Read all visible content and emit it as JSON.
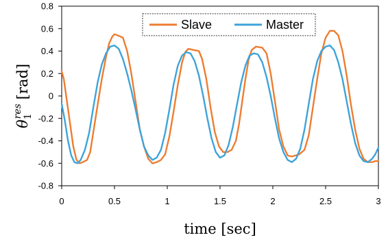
{
  "chart_data": {
    "type": "line",
    "xlabel": "time [sec]",
    "ylabel": {
      "base": "θ",
      "sub": "1",
      "sup": "res",
      "unit": "[rad]"
    },
    "xlim": [
      0,
      3
    ],
    "ylim": [
      -0.8,
      0.8
    ],
    "xticks": [
      0,
      0.5,
      1,
      1.5,
      2,
      2.5,
      3
    ],
    "xtick_labels": [
      "0",
      "0.5",
      "1",
      "1.5",
      "2",
      "2.5",
      "3"
    ],
    "yticks": [
      0.8,
      0.6,
      0.4,
      0.2,
      0,
      -0.2,
      -0.4,
      -0.6,
      -0.8
    ],
    "ytick_labels": [
      "0.8",
      "0.6",
      "0.4",
      "0.2",
      "0",
      "-0.2",
      "-0.4",
      "-0.6",
      "-0.8"
    ],
    "grid": false,
    "legend_position": "top-center",
    "series": [
      {
        "name": "Slave",
        "color": "#ED7D31",
        "points": [
          [
            0,
            0.22
          ],
          [
            0.02,
            0.15
          ],
          [
            0.05,
            -0.05
          ],
          [
            0.08,
            -0.25
          ],
          [
            0.11,
            -0.45
          ],
          [
            0.14,
            -0.57
          ],
          [
            0.17,
            -0.6
          ],
          [
            0.2,
            -0.59
          ],
          [
            0.24,
            -0.57
          ],
          [
            0.27,
            -0.5
          ],
          [
            0.3,
            -0.32
          ],
          [
            0.34,
            -0.08
          ],
          [
            0.38,
            0.15
          ],
          [
            0.42,
            0.35
          ],
          [
            0.45,
            0.47
          ],
          [
            0.48,
            0.53
          ],
          [
            0.5,
            0.55
          ],
          [
            0.53,
            0.54
          ],
          [
            0.58,
            0.52
          ],
          [
            0.62,
            0.4
          ],
          [
            0.66,
            0.2
          ],
          [
            0.7,
            -0.05
          ],
          [
            0.74,
            -0.3
          ],
          [
            0.78,
            -0.45
          ],
          [
            0.82,
            -0.56
          ],
          [
            0.86,
            -0.6
          ],
          [
            0.9,
            -0.59
          ],
          [
            0.94,
            -0.57
          ],
          [
            0.98,
            -0.52
          ],
          [
            1.02,
            -0.36
          ],
          [
            1.06,
            -0.14
          ],
          [
            1.1,
            0.1
          ],
          [
            1.14,
            0.3
          ],
          [
            1.17,
            0.39
          ],
          [
            1.2,
            0.42
          ],
          [
            1.25,
            0.41
          ],
          [
            1.3,
            0.4
          ],
          [
            1.33,
            0.33
          ],
          [
            1.37,
            0.15
          ],
          [
            1.41,
            -0.1
          ],
          [
            1.45,
            -0.32
          ],
          [
            1.49,
            -0.45
          ],
          [
            1.53,
            -0.5
          ],
          [
            1.57,
            -0.5
          ],
          [
            1.61,
            -0.48
          ],
          [
            1.65,
            -0.4
          ],
          [
            1.68,
            -0.25
          ],
          [
            1.71,
            -0.05
          ],
          [
            1.74,
            0.15
          ],
          [
            1.77,
            0.32
          ],
          [
            1.8,
            0.41
          ],
          [
            1.84,
            0.44
          ],
          [
            1.9,
            0.43
          ],
          [
            1.94,
            0.38
          ],
          [
            1.98,
            0.2
          ],
          [
            2.02,
            -0.05
          ],
          [
            2.06,
            -0.3
          ],
          [
            2.1,
            -0.45
          ],
          [
            2.14,
            -0.53
          ],
          [
            2.18,
            -0.54
          ],
          [
            2.25,
            -0.52
          ],
          [
            2.3,
            -0.48
          ],
          [
            2.34,
            -0.35
          ],
          [
            2.38,
            -0.1
          ],
          [
            2.42,
            0.15
          ],
          [
            2.46,
            0.38
          ],
          [
            2.5,
            0.52
          ],
          [
            2.54,
            0.58
          ],
          [
            2.58,
            0.58
          ],
          [
            2.62,
            0.54
          ],
          [
            2.66,
            0.4
          ],
          [
            2.7,
            0.18
          ],
          [
            2.74,
            -0.08
          ],
          [
            2.78,
            -0.3
          ],
          [
            2.82,
            -0.47
          ],
          [
            2.86,
            -0.56
          ],
          [
            2.9,
            -0.59
          ],
          [
            2.94,
            -0.59
          ],
          [
            2.97,
            -0.58
          ],
          [
            3,
            -0.58
          ]
        ]
      },
      {
        "name": "Master",
        "color": "#3DA3DA",
        "points": [
          [
            0,
            -0.07
          ],
          [
            0.03,
            -0.22
          ],
          [
            0.06,
            -0.4
          ],
          [
            0.09,
            -0.53
          ],
          [
            0.12,
            -0.59
          ],
          [
            0.15,
            -0.6
          ],
          [
            0.18,
            -0.57
          ],
          [
            0.22,
            -0.48
          ],
          [
            0.26,
            -0.33
          ],
          [
            0.3,
            -0.1
          ],
          [
            0.34,
            0.12
          ],
          [
            0.38,
            0.28
          ],
          [
            0.42,
            0.38
          ],
          [
            0.46,
            0.44
          ],
          [
            0.5,
            0.45
          ],
          [
            0.54,
            0.42
          ],
          [
            0.58,
            0.33
          ],
          [
            0.62,
            0.2
          ],
          [
            0.66,
            0.05
          ],
          [
            0.7,
            -0.12
          ],
          [
            0.74,
            -0.3
          ],
          [
            0.78,
            -0.45
          ],
          [
            0.82,
            -0.53
          ],
          [
            0.86,
            -0.57
          ],
          [
            0.9,
            -0.55
          ],
          [
            0.94,
            -0.48
          ],
          [
            0.98,
            -0.33
          ],
          [
            1.02,
            -0.12
          ],
          [
            1.06,
            0.1
          ],
          [
            1.1,
            0.27
          ],
          [
            1.14,
            0.36
          ],
          [
            1.18,
            0.39
          ],
          [
            1.22,
            0.38
          ],
          [
            1.26,
            0.31
          ],
          [
            1.3,
            0.18
          ],
          [
            1.34,
            0.0
          ],
          [
            1.38,
            -0.2
          ],
          [
            1.42,
            -0.38
          ],
          [
            1.46,
            -0.5
          ],
          [
            1.5,
            -0.55
          ],
          [
            1.54,
            -0.53
          ],
          [
            1.58,
            -0.44
          ],
          [
            1.62,
            -0.28
          ],
          [
            1.66,
            -0.08
          ],
          [
            1.7,
            0.12
          ],
          [
            1.74,
            0.27
          ],
          [
            1.78,
            0.36
          ],
          [
            1.82,
            0.38
          ],
          [
            1.86,
            0.37
          ],
          [
            1.9,
            0.3
          ],
          [
            1.94,
            0.17
          ],
          [
            1.98,
            0.0
          ],
          [
            2.02,
            -0.2
          ],
          [
            2.06,
            -0.38
          ],
          [
            2.1,
            -0.5
          ],
          [
            2.14,
            -0.57
          ],
          [
            2.18,
            -0.59
          ],
          [
            2.22,
            -0.56
          ],
          [
            2.26,
            -0.47
          ],
          [
            2.3,
            -0.3
          ],
          [
            2.34,
            -0.07
          ],
          [
            2.38,
            0.15
          ],
          [
            2.42,
            0.31
          ],
          [
            2.46,
            0.4
          ],
          [
            2.5,
            0.44
          ],
          [
            2.54,
            0.45
          ],
          [
            2.58,
            0.41
          ],
          [
            2.62,
            0.3
          ],
          [
            2.66,
            0.15
          ],
          [
            2.7,
            -0.05
          ],
          [
            2.74,
            -0.25
          ],
          [
            2.78,
            -0.42
          ],
          [
            2.82,
            -0.53
          ],
          [
            2.86,
            -0.58
          ],
          [
            2.9,
            -0.59
          ],
          [
            2.94,
            -0.56
          ],
          [
            2.97,
            -0.52
          ],
          [
            3,
            -0.46
          ]
        ]
      }
    ]
  }
}
